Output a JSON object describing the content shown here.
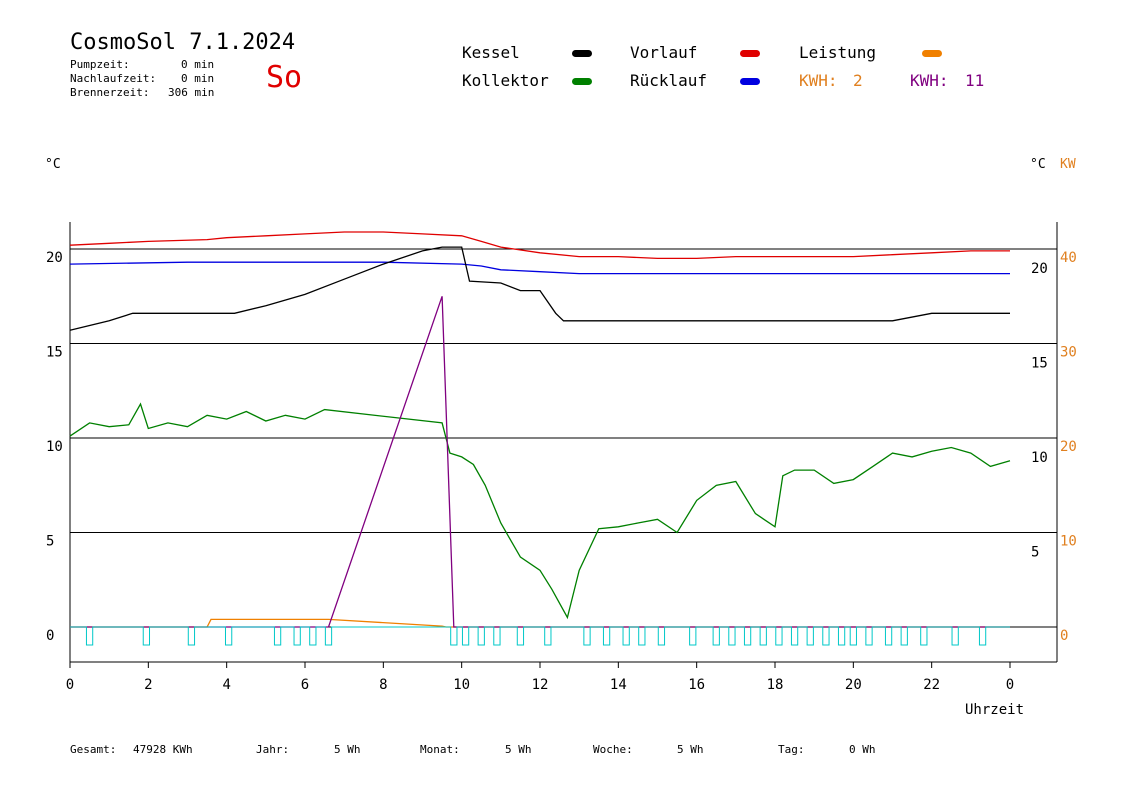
{
  "header": {
    "title": "CosmoSol 7.1.2024",
    "weekday": "So",
    "stats": [
      {
        "label": "Pumpzeit:",
        "value": "0 min"
      },
      {
        "label": "Nachlaufzeit:",
        "value": "0 min"
      },
      {
        "label": "Brennerzeit:",
        "value": "306 min"
      }
    ]
  },
  "legend": {
    "kessel": {
      "label": "Kessel",
      "color": "#000000"
    },
    "kollektor": {
      "label": "Kollektor",
      "color": "#008000"
    },
    "vorlauf": {
      "label": "Vorlauf",
      "color": "#e00000"
    },
    "ruecklauf": {
      "label": "Rücklauf",
      "color": "#0000e0"
    },
    "leistung": {
      "label": "Leistung",
      "color": "#f08000"
    },
    "kwh1": {
      "label": "KWH:",
      "value": "2",
      "color": "#e08020"
    },
    "kwh2": {
      "label": "KWH:",
      "value": "11",
      "color": "#800080"
    }
  },
  "footer": {
    "gesamt": {
      "label": "Gesamt:",
      "value": "47928 KWh"
    },
    "jahr": {
      "label": "Jahr:",
      "value": "5 Wh"
    },
    "monat": {
      "label": "Monat:",
      "value": "5 Wh"
    },
    "woche": {
      "label": "Woche:",
      "value": "5 Wh"
    },
    "tag": {
      "label": "Tag:",
      "value": "0 Wh"
    }
  },
  "chart_data": {
    "type": "line",
    "xlabel": "Uhrzeit",
    "ylabel_left": "°C",
    "ylabel_right_1": "°C",
    "ylabel_right_2": "KW",
    "x_ticks": [
      "0",
      "2",
      "4",
      "6",
      "8",
      "10",
      "12",
      "14",
      "16",
      "18",
      "20",
      "22",
      "0"
    ],
    "xlim": [
      0,
      24
    ],
    "y_left_ticks": [
      "0",
      "5",
      "10",
      "15",
      "20"
    ],
    "y_left_lim": [
      0,
      20
    ],
    "y_right_inner_ticks": [
      "5",
      "10",
      "15",
      "20"
    ],
    "y_right_outer_ticks": [
      "0",
      "10",
      "20",
      "30",
      "40"
    ],
    "grid": true,
    "series": [
      {
        "name": "Vorlauf",
        "color": "#e00000",
        "x": [
          0,
          1,
          2,
          3.5,
          4,
          5,
          6,
          7,
          8,
          9,
          10,
          10.5,
          11,
          12,
          13,
          14,
          15,
          16,
          17,
          18,
          19,
          20,
          21,
          22,
          23,
          24
        ],
        "y": [
          20.2,
          20.3,
          20.4,
          20.5,
          20.6,
          20.7,
          20.8,
          20.9,
          20.9,
          20.8,
          20.7,
          20.4,
          20.1,
          19.8,
          19.6,
          19.6,
          19.5,
          19.5,
          19.6,
          19.6,
          19.6,
          19.6,
          19.7,
          19.8,
          19.9,
          19.9
        ]
      },
      {
        "name": "Rücklauf",
        "color": "#0000e0",
        "x": [
          0,
          3,
          6,
          8,
          10,
          10.5,
          11,
          12,
          13,
          14,
          16,
          18,
          20,
          22,
          24
        ],
        "y": [
          19.2,
          19.3,
          19.3,
          19.3,
          19.2,
          19.1,
          18.9,
          18.8,
          18.7,
          18.7,
          18.7,
          18.7,
          18.7,
          18.7,
          18.7
        ]
      },
      {
        "name": "Kessel",
        "color": "#000000",
        "x": [
          0,
          1,
          1.6,
          4.2,
          5,
          6,
          7,
          8,
          9,
          9.5,
          10,
          10.2,
          11,
          11.5,
          12,
          12.4,
          12.6,
          13,
          14,
          16,
          18,
          20,
          21,
          22,
          23,
          24
        ],
        "y": [
          15.7,
          16.2,
          16.6,
          16.6,
          17.0,
          17.6,
          18.4,
          19.2,
          19.9,
          20.1,
          20.1,
          18.3,
          18.2,
          17.8,
          17.8,
          16.6,
          16.2,
          16.2,
          16.2,
          16.2,
          16.2,
          16.2,
          16.2,
          16.6,
          16.6,
          16.6
        ]
      },
      {
        "name": "Kollektor",
        "color": "#008000",
        "x": [
          0,
          0.5,
          1,
          1.5,
          1.8,
          2,
          2.5,
          3,
          3.5,
          4,
          4.5,
          5,
          5.5,
          6,
          6.5,
          9.5,
          9.7,
          10,
          10.3,
          10.6,
          11,
          11.5,
          12,
          12.3,
          12.7,
          13,
          13.5,
          14,
          14.5,
          15,
          15.5,
          16,
          16.5,
          17,
          17.5,
          18,
          18.2,
          18.5,
          19,
          19.5,
          20,
          20.5,
          21,
          21.5,
          22,
          22.5,
          23,
          23.5,
          24
        ],
        "y": [
          10.1,
          10.8,
          10.6,
          10.7,
          11.8,
          10.5,
          10.8,
          10.6,
          11.2,
          11.0,
          11.4,
          10.9,
          11.2,
          11.0,
          11.5,
          10.8,
          9.2,
          9.0,
          8.6,
          7.5,
          5.5,
          3.7,
          3.0,
          2.0,
          0.5,
          3.0,
          5.2,
          5.3,
          5.5,
          5.7,
          5.0,
          6.7,
          7.5,
          7.7,
          6.0,
          5.3,
          8.0,
          8.3,
          8.3,
          7.6,
          7.8,
          8.5,
          9.2,
          9.0,
          9.3,
          9.5,
          9.2,
          8.5,
          8.8
        ]
      },
      {
        "name": "Leistung",
        "color": "#f08000",
        "x": [
          0,
          3.5,
          3.6,
          6.6,
          9.5,
          9.6,
          24
        ],
        "y": [
          0,
          0,
          0.4,
          0.4,
          0.05,
          0,
          0
        ]
      },
      {
        "name": "KWH",
        "color": "#800080",
        "x": [
          0,
          6.6,
          9.5,
          9.8,
          24
        ],
        "y": [
          0,
          0,
          17.5,
          0,
          0
        ]
      },
      {
        "name": "Pumpe",
        "color": "#00c8c8",
        "pulses": [
          0.5,
          1.95,
          3.1,
          4.05,
          5.3,
          5.8,
          6.2,
          6.6,
          9.8,
          10.1,
          10.5,
          10.9,
          11.5,
          12.2,
          13.2,
          13.7,
          14.2,
          14.6,
          15.1,
          15.9,
          16.5,
          16.9,
          17.3,
          17.7,
          18.1,
          18.5,
          18.9,
          19.3,
          19.7,
          20.0,
          20.4,
          20.9,
          21.3,
          21.8,
          22.6,
          23.3
        ]
      }
    ]
  }
}
